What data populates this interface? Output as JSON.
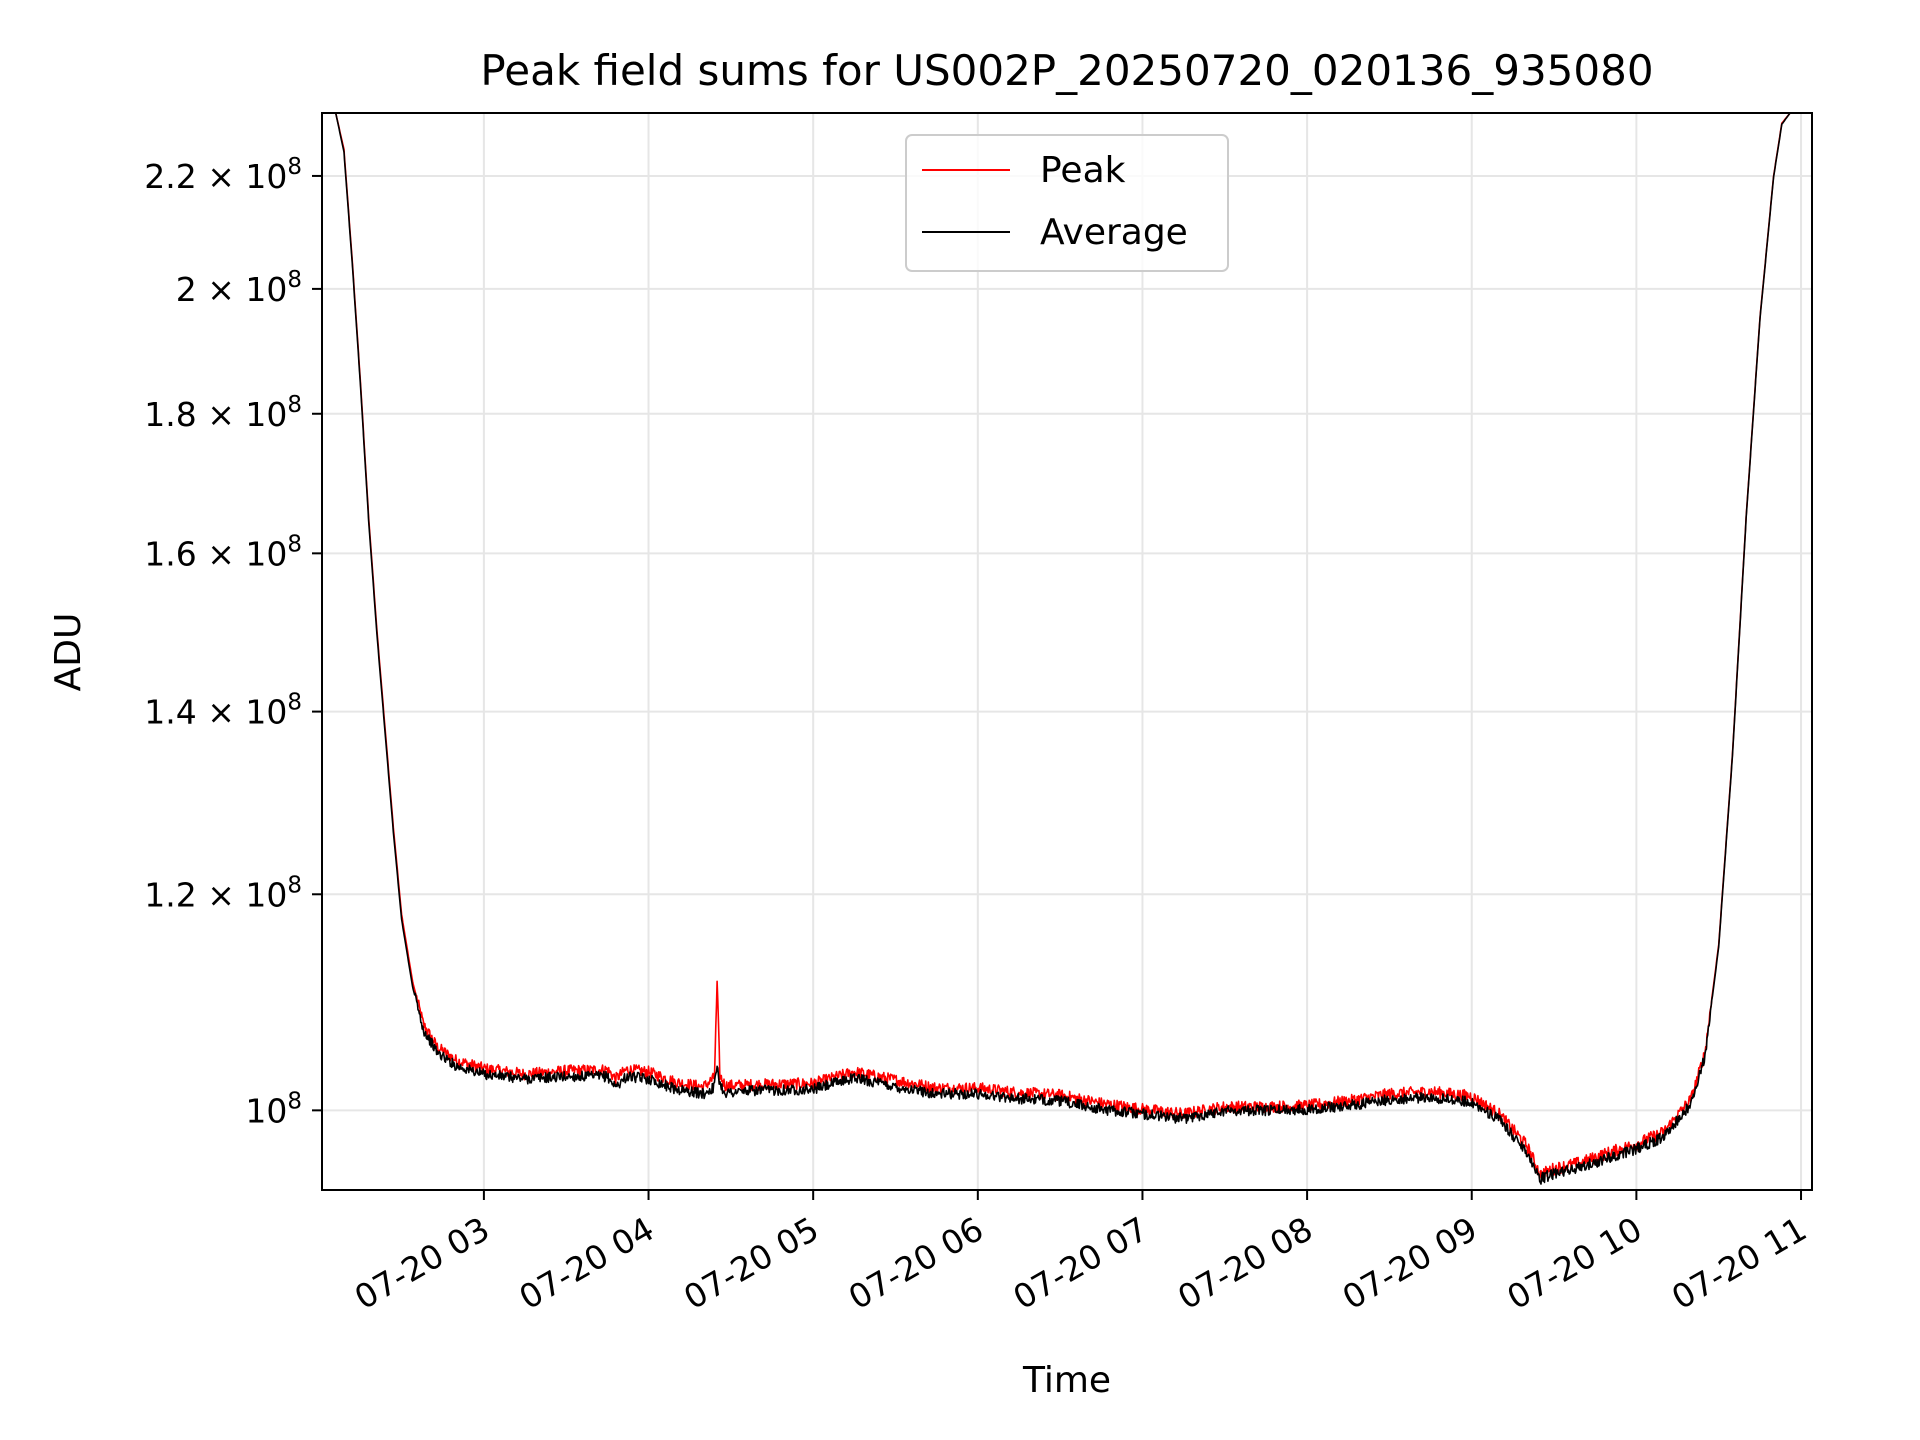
{
  "chart_data": {
    "type": "line",
    "title": "Peak field sums for US002P_20250720_020136_935080",
    "xlabel": "Time",
    "ylabel": "ADU",
    "yscale": "log",
    "ylim": [
      93500000,
      232000000
    ],
    "xlim": [
      "2025-07-20 02:01",
      "2025-07-20 11:04"
    ],
    "grid": true,
    "legend_position": "top-center",
    "x_ticks": [
      "07-20 03",
      "07-20 04",
      "07-20 05",
      "07-20 06",
      "07-20 07",
      "07-20 08",
      "07-20 09",
      "07-20 10",
      "07-20 11"
    ],
    "y_ticks": [
      {
        "value": 100000000,
        "mantissa": "",
        "base": "10",
        "exp": "8"
      },
      {
        "value": 120000000,
        "mantissa": "1.2",
        "base": "10",
        "exp": "8"
      },
      {
        "value": 140000000,
        "mantissa": "1.4",
        "base": "10",
        "exp": "8"
      },
      {
        "value": 160000000,
        "mantissa": "1.6",
        "base": "10",
        "exp": "8"
      },
      {
        "value": 180000000,
        "mantissa": "1.8",
        "base": "10",
        "exp": "8"
      },
      {
        "value": 200000000,
        "mantissa": "2",
        "base": "10",
        "exp": "8"
      },
      {
        "value": 220000000,
        "mantissa": "2.2",
        "base": "10",
        "exp": "8"
      }
    ],
    "series": [
      {
        "name": "Peak",
        "color": "#ff0000",
        "noise": 500000,
        "x": [
          "2025-07-20 02:01",
          "2025-07-20 02:06",
          "2025-07-20 02:09",
          "2025-07-20 02:12",
          "2025-07-20 02:15",
          "2025-07-20 02:18",
          "2025-07-20 02:21",
          "2025-07-20 02:24",
          "2025-07-20 02:27",
          "2025-07-20 02:30",
          "2025-07-20 02:34",
          "2025-07-20 02:38",
          "2025-07-20 02:43",
          "2025-07-20 02:50",
          "2025-07-20 03:00",
          "2025-07-20 03:15",
          "2025-07-20 03:30",
          "2025-07-20 03:45",
          "2025-07-20 03:48",
          "2025-07-20 03:52",
          "2025-07-20 04:00",
          "2025-07-20 04:10",
          "2025-07-20 04:20",
          "2025-07-20 04:24",
          "2025-07-20 04:25",
          "2025-07-20 04:26",
          "2025-07-20 04:28",
          "2025-07-20 04:40",
          "2025-07-20 05:00",
          "2025-07-20 05:15",
          "2025-07-20 05:30",
          "2025-07-20 05:45",
          "2025-07-20 06:00",
          "2025-07-20 06:15",
          "2025-07-20 06:30",
          "2025-07-20 06:45",
          "2025-07-20 07:00",
          "2025-07-20 07:15",
          "2025-07-20 07:30",
          "2025-07-20 07:45",
          "2025-07-20 08:00",
          "2025-07-20 08:15",
          "2025-07-20 08:30",
          "2025-07-20 08:45",
          "2025-07-20 09:00",
          "2025-07-20 09:10",
          "2025-07-20 09:20",
          "2025-07-20 09:25",
          "2025-07-20 09:30",
          "2025-07-20 09:40",
          "2025-07-20 09:50",
          "2025-07-20 10:00",
          "2025-07-20 10:10",
          "2025-07-20 10:20",
          "2025-07-20 10:25",
          "2025-07-20 10:30",
          "2025-07-20 10:35",
          "2025-07-20 10:40",
          "2025-07-20 10:45",
          "2025-07-20 10:50",
          "2025-07-20 10:53",
          "2025-07-20 10:56"
        ],
        "y": [
          232000000,
          232000000,
          225000000,
          205000000,
          185000000,
          165000000,
          150000000,
          138000000,
          127000000,
          118000000,
          111500000,
          107500000,
          105500000,
          104300000,
          103600000,
          103100000,
          103400000,
          103500000,
          102700000,
          103500000,
          103300000,
          102400000,
          102000000,
          102800000,
          111500000,
          103000000,
          102100000,
          102200000,
          102300000,
          103300000,
          102600000,
          101900000,
          101900000,
          101500000,
          101300000,
          100600000,
          100100000,
          99700000,
          100300000,
          100300000,
          100400000,
          100800000,
          101400000,
          101600000,
          101200000,
          99700000,
          97100000,
          94700000,
          95200000,
          95700000,
          96500000,
          97200000,
          98200000,
          101000000,
          105000000,
          115000000,
          135000000,
          165000000,
          195000000,
          220000000,
          230000000,
          232000000
        ]
      },
      {
        "name": "Average",
        "color": "#000000",
        "noise": 450000,
        "x": [
          "2025-07-20 02:01",
          "2025-07-20 02:06",
          "2025-07-20 02:09",
          "2025-07-20 02:12",
          "2025-07-20 02:15",
          "2025-07-20 02:18",
          "2025-07-20 02:21",
          "2025-07-20 02:24",
          "2025-07-20 02:27",
          "2025-07-20 02:30",
          "2025-07-20 02:34",
          "2025-07-20 02:38",
          "2025-07-20 02:43",
          "2025-07-20 02:50",
          "2025-07-20 03:00",
          "2025-07-20 03:15",
          "2025-07-20 03:30",
          "2025-07-20 03:45",
          "2025-07-20 03:48",
          "2025-07-20 03:52",
          "2025-07-20 04:00",
          "2025-07-20 04:10",
          "2025-07-20 04:20",
          "2025-07-20 04:24",
          "2025-07-20 04:25",
          "2025-07-20 04:26",
          "2025-07-20 04:28",
          "2025-07-20 04:40",
          "2025-07-20 05:00",
          "2025-07-20 05:15",
          "2025-07-20 05:30",
          "2025-07-20 05:45",
          "2025-07-20 06:00",
          "2025-07-20 06:15",
          "2025-07-20 06:30",
          "2025-07-20 06:45",
          "2025-07-20 07:00",
          "2025-07-20 07:15",
          "2025-07-20 07:30",
          "2025-07-20 07:45",
          "2025-07-20 08:00",
          "2025-07-20 08:15",
          "2025-07-20 08:30",
          "2025-07-20 08:45",
          "2025-07-20 09:00",
          "2025-07-20 09:10",
          "2025-07-20 09:20",
          "2025-07-20 09:25",
          "2025-07-20 09:30",
          "2025-07-20 09:40",
          "2025-07-20 09:50",
          "2025-07-20 10:00",
          "2025-07-20 10:10",
          "2025-07-20 10:20",
          "2025-07-20 10:25",
          "2025-07-20 10:30",
          "2025-07-20 10:35",
          "2025-07-20 10:40",
          "2025-07-20 10:45",
          "2025-07-20 10:50",
          "2025-07-20 10:53",
          "2025-07-20 10:56"
        ],
        "y": [
          232000000,
          232000000,
          224500000,
          204500000,
          184500000,
          164500000,
          149500000,
          137500000,
          126500000,
          117500000,
          111000000,
          107000000,
          105000000,
          103800000,
          103100000,
          102700000,
          102900000,
          102900000,
          102000000,
          102900000,
          102700000,
          101800000,
          101400000,
          102000000,
          104000000,
          102200000,
          101500000,
          101700000,
          101800000,
          102800000,
          102000000,
          101400000,
          101400000,
          101000000,
          100800000,
          100100000,
          99700000,
          99300000,
          100000000,
          100000000,
          100100000,
          100400000,
          100900000,
          101100000,
          100700000,
          99200000,
          96600000,
          94400000,
          94800000,
          95300000,
          96100000,
          96800000,
          97800000,
          100600000,
          104700000,
          114800000,
          134800000,
          164800000,
          194800000,
          219800000,
          229800000,
          232000000
        ]
      }
    ]
  }
}
